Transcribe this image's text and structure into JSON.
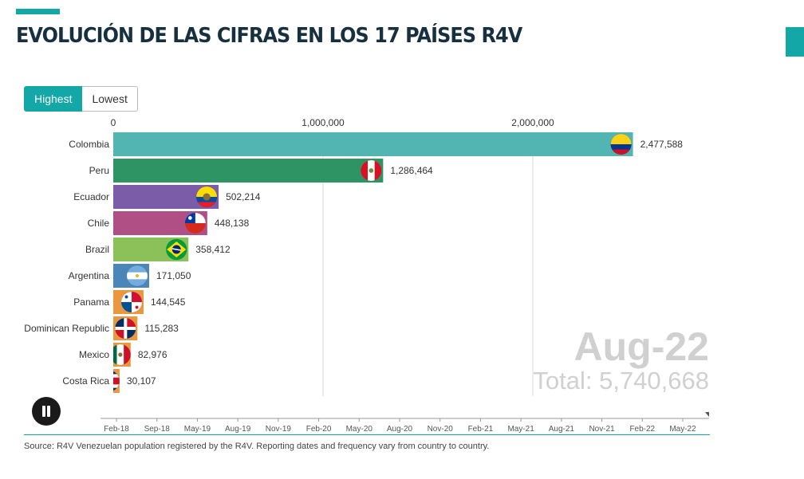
{
  "header": {
    "title": "EVOLUCIÓN DE LAS CIFRAS EN LOS 17 PAÍSES R4V",
    "accent_color": "#13a7a8"
  },
  "controls": {
    "highest_label": "Highest",
    "lowest_label": "Lowest",
    "selected": "Highest"
  },
  "player": {
    "state": "playing",
    "button_icon": "pause-icon",
    "current_date": "Aug-22",
    "total_label": "Total:",
    "total_value": "5,740,668"
  },
  "timeline": {
    "labels": [
      "Feb-18",
      "Sep-18",
      "May-19",
      "Aug-19",
      "Nov-19",
      "Feb-20",
      "May-20",
      "Aug-20",
      "Nov-20",
      "Feb-21",
      "May-21",
      "Aug-21",
      "Nov-21",
      "Feb-22",
      "May-22"
    ]
  },
  "source": "Source: R4V Venezuelan population registered by the R4V. Reporting dates and frequency vary from country to country.",
  "chart_data": {
    "type": "bar",
    "orientation": "horizontal",
    "xlim": [
      0,
      2500000
    ],
    "ticks": [
      0,
      1000000,
      2000000
    ],
    "tick_labels": [
      "0",
      "1,000,000",
      "2,000,000"
    ],
    "grid": true,
    "categories": [
      "Colombia",
      "Peru",
      "Ecuador",
      "Chile",
      "Brazil",
      "Argentina",
      "Panama",
      "Dominican Republic",
      "Mexico",
      "Costa Rica"
    ],
    "values": [
      2477588,
      1286464,
      502214,
      448138,
      358412,
      171050,
      144545,
      115283,
      82976,
      30107
    ],
    "value_labels": [
      "2,477,588",
      "1,286,464",
      "502,214",
      "448,138",
      "358,412",
      "171,050",
      "144,545",
      "115,283",
      "82,976",
      "30,107"
    ],
    "colors": [
      "#52b5b1",
      "#2e9464",
      "#7a5ca8",
      "#b04f86",
      "#8cc15a",
      "#4a86b8",
      "#e9983f",
      "#e9983f",
      "#e9983f",
      "#e9983f"
    ],
    "flag_icons": [
      "colombia-flag-icon",
      "peru-flag-icon",
      "ecuador-flag-icon",
      "chile-flag-icon",
      "brazil-flag-icon",
      "argentina-flag-icon",
      "panama-flag-icon",
      "dominican-republic-flag-icon",
      "mexico-flag-icon",
      "costa-rica-flag-icon"
    ]
  }
}
